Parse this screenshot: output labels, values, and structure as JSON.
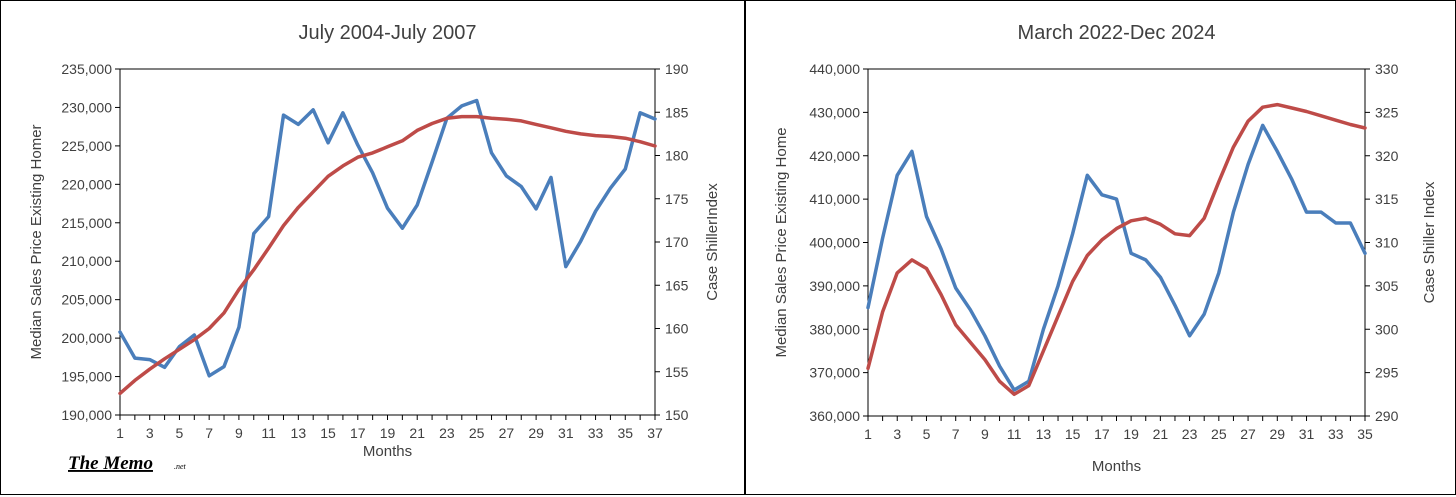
{
  "colors": {
    "sales": "#4a7ebb",
    "case_shiller": "#be4b48",
    "axis": "#000000",
    "text": "#404040"
  },
  "logo": {
    "text": "The Memo",
    "suffix": ".net"
  },
  "chart_data": [
    {
      "type": "line",
      "title": "July 2004-July 2007",
      "xlabel": "Months",
      "ylabel": "Median Sales Price Existing Homer",
      "y2label": "Case ShillerIndex",
      "x": [
        1,
        2,
        3,
        4,
        5,
        6,
        7,
        8,
        9,
        10,
        11,
        12,
        13,
        14,
        15,
        16,
        17,
        18,
        19,
        20,
        21,
        22,
        23,
        24,
        25,
        26,
        27,
        28,
        29,
        30,
        31,
        32,
        33,
        34,
        35,
        36,
        37
      ],
      "x_tick_labels": [
        "1",
        "3",
        "5",
        "7",
        "9",
        "11",
        "13",
        "15",
        "17",
        "19",
        "21",
        "23",
        "25",
        "27",
        "29",
        "31",
        "33",
        "35",
        "37"
      ],
      "ylim": [
        190000,
        235000
      ],
      "y_tick_labels": [
        "190,000",
        "195,000",
        "200,000",
        "205,000",
        "210,000",
        "215,000",
        "220,000",
        "225,000",
        "230,000",
        "235,000"
      ],
      "y2lim": [
        150,
        190
      ],
      "y2_tick_labels": [
        "150",
        "155",
        "160",
        "165",
        "170",
        "175",
        "180",
        "185",
        "190"
      ],
      "series": [
        {
          "name": "Median Sales Price Existing Home",
          "axis": "left",
          "color": "#4a7ebb",
          "values": [
            200800,
            197400,
            197200,
            196200,
            198900,
            200400,
            195100,
            196300,
            201400,
            213600,
            215800,
            229000,
            227800,
            229700,
            225400,
            229300,
            225100,
            221500,
            216900,
            214300,
            217300,
            222900,
            228600,
            230200,
            230900,
            224100,
            221100,
            219700,
            216800,
            220900,
            209300,
            212600,
            216500,
            219500,
            222000,
            229300,
            228500
          ]
        },
        {
          "name": "Case Shiller Index",
          "axis": "right",
          "color": "#be4b48",
          "values": [
            152.5,
            154,
            155.3,
            156.5,
            157.6,
            158.7,
            160,
            161.8,
            164.5,
            166.8,
            169.3,
            171.9,
            174,
            175.8,
            177.6,
            178.8,
            179.8,
            180.3,
            181,
            181.7,
            182.9,
            183.7,
            184.3,
            184.5,
            184.5,
            184.3,
            184.2,
            184,
            183.6,
            183.2,
            182.8,
            182.5,
            182.3,
            182.2,
            182,
            181.6,
            181.1
          ]
        }
      ]
    },
    {
      "type": "line",
      "title": "March 2022-Dec 2024",
      "xlabel": "Months",
      "ylabel": "Median Sales Price Existing Home",
      "y2label": "Case Shiller Index",
      "x": [
        1,
        2,
        3,
        4,
        5,
        6,
        7,
        8,
        9,
        10,
        11,
        12,
        13,
        14,
        15,
        16,
        17,
        18,
        19,
        20,
        21,
        22,
        23,
        24,
        25,
        26,
        27,
        28,
        29,
        30,
        31,
        32,
        33,
        34,
        35
      ],
      "x_tick_labels": [
        "1",
        "3",
        "5",
        "7",
        "9",
        "11",
        "13",
        "15",
        "17",
        "19",
        "21",
        "23",
        "25",
        "27",
        "29",
        "31",
        "33",
        "35"
      ],
      "ylim": [
        360000,
        440000
      ],
      "y_tick_labels": [
        "360,000",
        "370,000",
        "380,000",
        "390,000",
        "400,000",
        "410,000",
        "420,000",
        "430,000",
        "440,000"
      ],
      "y2lim": [
        290,
        330
      ],
      "y2_tick_labels": [
        "290",
        "295",
        "300",
        "305",
        "310",
        "315",
        "320",
        "325",
        "330"
      ],
      "series": [
        {
          "name": "Median Sales Price Existing Home",
          "axis": "left",
          "color": "#4a7ebb",
          "values": [
            385000,
            401000,
            415500,
            421000,
            406000,
            398500,
            389500,
            384500,
            378500,
            371500,
            366000,
            368000,
            380000,
            390000,
            402000,
            415500,
            411000,
            410000,
            397500,
            396000,
            392000,
            385500,
            378500,
            383500,
            393000,
            407000,
            418000,
            427000,
            421000,
            414500,
            407000,
            407000,
            404500,
            404500,
            397500
          ]
        },
        {
          "name": "Case Shiller Index",
          "axis": "right",
          "color": "#be4b48",
          "values": [
            295.5,
            302,
            306.5,
            308,
            307,
            304,
            300.5,
            298.5,
            296.5,
            294,
            292.5,
            293.5,
            297.5,
            301.5,
            305.5,
            308.5,
            310.3,
            311.6,
            312.5,
            312.8,
            312.1,
            311,
            310.8,
            312.8,
            317,
            321,
            324,
            325.6,
            325.9,
            325.5,
            325.1,
            324.6,
            324.1,
            323.6,
            323.2
          ]
        }
      ]
    }
  ]
}
